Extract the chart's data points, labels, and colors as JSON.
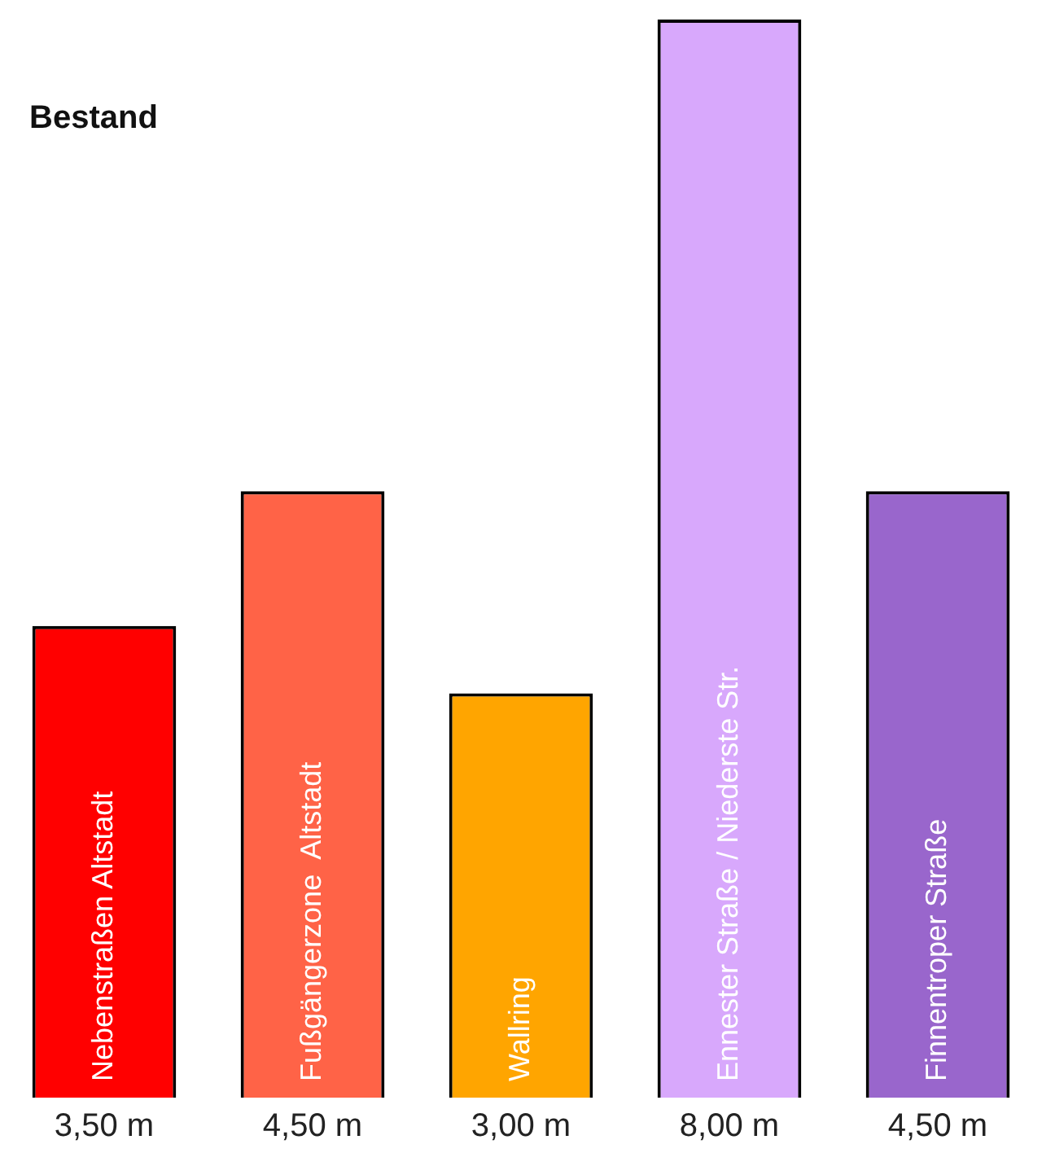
{
  "chart_data": {
    "type": "bar",
    "title": "Bestand",
    "categories": [
      "Nebenstraßen Altstadt",
      "Fußgängerzone  Altstadt",
      "Wallring",
      "Ennester Straße / Niederste Str.",
      "Finnentroper Straße"
    ],
    "values": [
      3.5,
      4.5,
      3.0,
      8.0,
      4.5
    ],
    "colors": [
      "#ff0000",
      "#ff6347",
      "#ffa500",
      "#d8a8fc",
      "#9966cc"
    ],
    "value_labels": [
      "3,50 m",
      "4,50 m",
      "3,00 m",
      "8,00 m",
      "4,50 m"
    ],
    "legend": false
  }
}
